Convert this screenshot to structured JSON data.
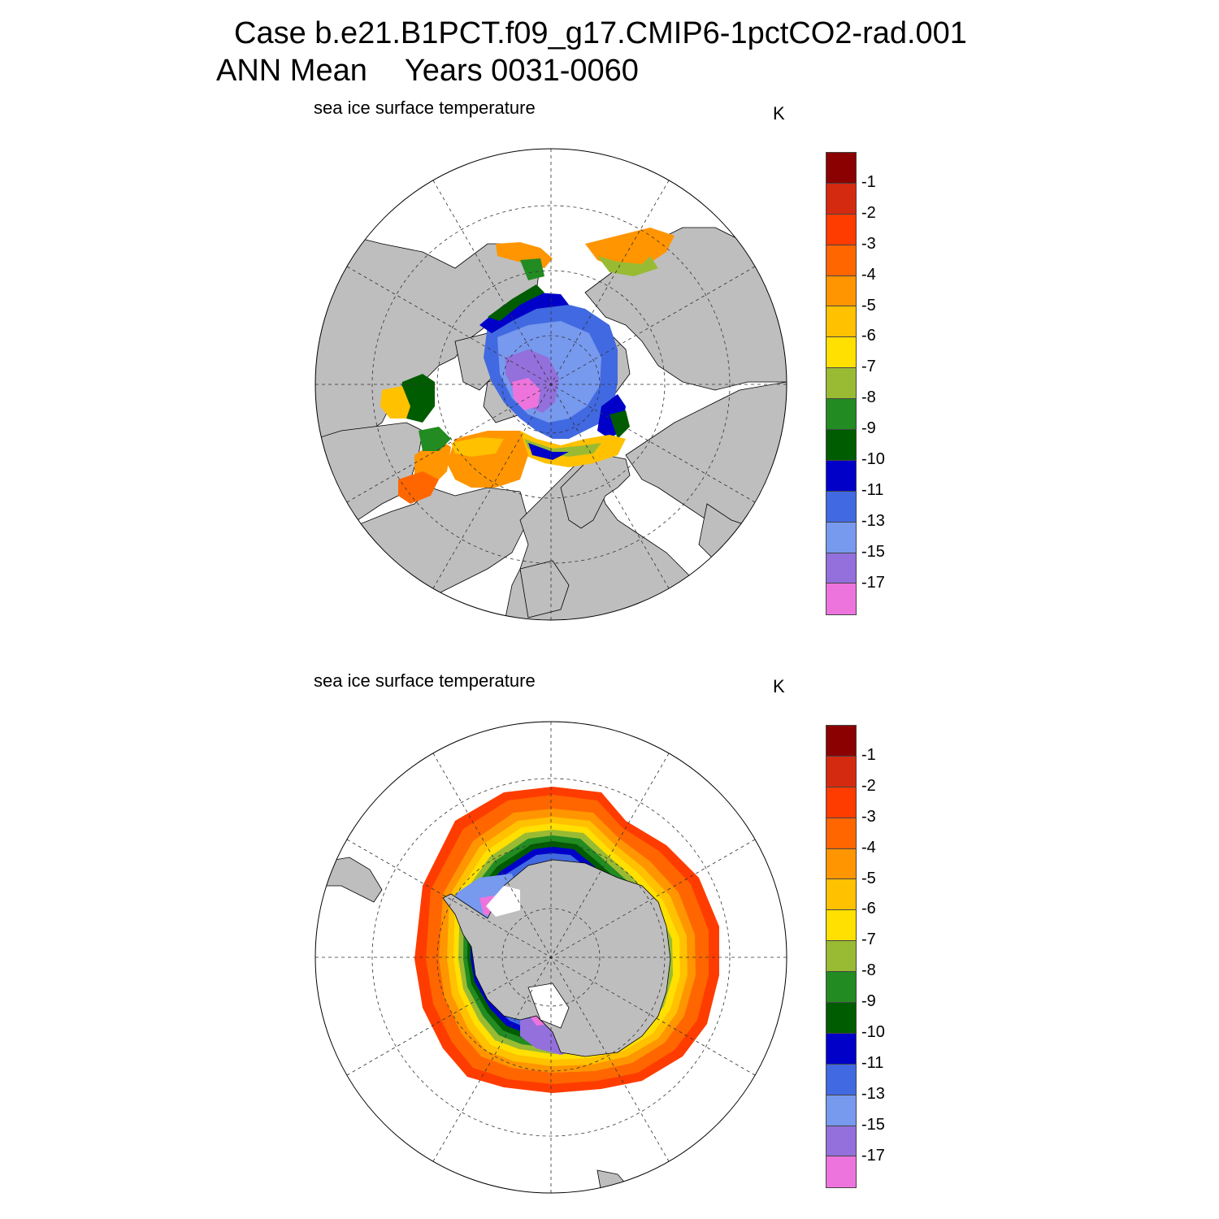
{
  "header": {
    "title_line1": "Case b.e21.B1PCT.f09_g17.CMIP6-1pctCO2-rad.001",
    "season": "ANN Mean",
    "years": "Years 0031-0060"
  },
  "panels": [
    {
      "id": "north",
      "title": "sea ice surface temperature",
      "units": "K",
      "hemisphere": "Northern"
    },
    {
      "id": "south",
      "title": "sea ice surface temperature",
      "units": "K",
      "hemisphere": "Southern"
    }
  ],
  "colorbar": {
    "levels": [
      "-1",
      "-2",
      "-3",
      "-4",
      "-5",
      "-6",
      "-7",
      "-8",
      "-9",
      "-10",
      "-11",
      "-13",
      "-15",
      "-17"
    ],
    "colors": [
      "#8b0000",
      "#d42a10",
      "#ff3c00",
      "#ff6600",
      "#ff9500",
      "#ffc100",
      "#ffe000",
      "#99bb33",
      "#228b22",
      "#005c00",
      "#0000c8",
      "#4169e1",
      "#7799ee",
      "#9370db",
      "#ee74dd"
    ]
  },
  "colors": {
    "land": "#bebebe",
    "ocean": "#ffffff",
    "coast": "#000000",
    "grid": "#333333"
  },
  "chart_data": {
    "type": "heatmap",
    "variable": "sea ice surface temperature",
    "units": "K",
    "projection": "polar stereographic",
    "contour_levels": [
      -1,
      -2,
      -3,
      -4,
      -5,
      -6,
      -7,
      -8,
      -9,
      -10,
      -11,
      -13,
      -15,
      -17
    ],
    "panels": [
      "Northern Hemisphere",
      "Southern Hemisphere"
    ]
  }
}
